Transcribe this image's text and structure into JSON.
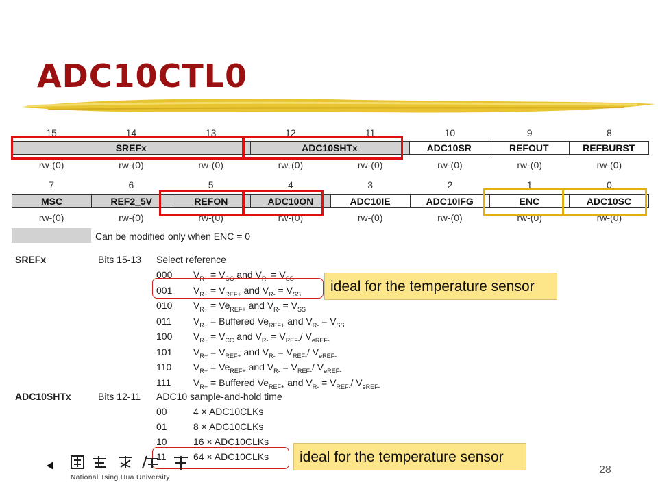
{
  "slide": {
    "title": "ADC10CTL0",
    "page_number": "28"
  },
  "register": {
    "row1_bits": [
      "15",
      "14",
      "13",
      "12",
      "11",
      "10",
      "9",
      "8"
    ],
    "row1_fields": [
      "SREFx",
      "ADC10SHTx",
      "ADC10SR",
      "REFOUT",
      "REFBURST"
    ],
    "row1_access": [
      "rw-(0)",
      "rw-(0)",
      "rw-(0)",
      "rw-(0)",
      "rw-(0)",
      "rw-(0)",
      "rw-(0)",
      "rw-(0)"
    ],
    "row2_bits": [
      "7",
      "6",
      "5",
      "4",
      "3",
      "2",
      "1",
      "0"
    ],
    "row2_fields": [
      "MSC",
      "REF2_5V",
      "REFON",
      "ADC10ON",
      "ADC10IE",
      "ADC10IFG",
      "ENC",
      "ADC10SC"
    ],
    "row2_access": [
      "rw-(0)",
      "rw-(0)",
      "rw-(0)",
      "rw-(0)",
      "rw-(0)",
      "rw-(0)",
      "rw-(0)",
      "rw-(0)"
    ],
    "legend": "Can be modified only when ENC = 0"
  },
  "srefx": {
    "name": "SREFx",
    "bits": "Bits 15-13",
    "desc": "Select reference",
    "options": [
      {
        "code": "000",
        "pre": "V",
        "s1": "R+",
        "mid1": " = V",
        "s2": "CC",
        "mid2": " and V",
        "s3": "R-",
        "mid3": " = V",
        "s4": "SS",
        "end": ""
      },
      {
        "code": "001",
        "pre": "V",
        "s1": "R+",
        "mid1": " = V",
        "s2": "REF+",
        "mid2": " and V",
        "s3": "R-",
        "mid3": " = V",
        "s4": "SS",
        "end": ""
      },
      {
        "code": "010",
        "pre": "V",
        "s1": "R+",
        "mid1": " = Ve",
        "s2": "REF+",
        "mid2": " and V",
        "s3": "R-",
        "mid3": " = V",
        "s4": "SS",
        "end": ""
      },
      {
        "code": "011",
        "pre": "V",
        "s1": "R+",
        "mid1": " = Buffered Ve",
        "s2": "REF+",
        "mid2": " and V",
        "s3": "R-",
        "mid3": " = V",
        "s4": "SS",
        "end": ""
      },
      {
        "code": "100",
        "pre": "V",
        "s1": "R+",
        "mid1": " = V",
        "s2": "CC",
        "mid2": " and V",
        "s3": "R-",
        "mid3": " = V",
        "s4": "REF-",
        "end": "/ V",
        "s5": "eREF-"
      },
      {
        "code": "101",
        "pre": "V",
        "s1": "R+",
        "mid1": " = V",
        "s2": "REF+",
        "mid2": " and V",
        "s3": "R-",
        "mid3": " = V",
        "s4": "REF-",
        "end": "/ V",
        "s5": "eREF-"
      },
      {
        "code": "110",
        "pre": "V",
        "s1": "R+",
        "mid1": " = Ve",
        "s2": "REF+",
        "mid2": " and V",
        "s3": "R-",
        "mid3": " = V",
        "s4": "REF-",
        "end": "/ V",
        "s5": "eREF-"
      },
      {
        "code": "111",
        "pre": "V",
        "s1": "R+",
        "mid1": " = Buffered Ve",
        "s2": "REF+",
        "mid2": " and V",
        "s3": "R-",
        "mid3": " = V",
        "s4": "REF-",
        "end": "/ V",
        "s5": "eREF-"
      }
    ]
  },
  "adc10shtx": {
    "name": "ADC10SHTx",
    "bits": "Bits 12-11",
    "desc": "ADC10 sample-and-hold time",
    "options": [
      {
        "code": "00",
        "text": "4 × ADC10CLKs"
      },
      {
        "code": "01",
        "text": "8 × ADC10CLKs"
      },
      {
        "code": "10",
        "text": "16 × ADC10CLKs"
      },
      {
        "code": "11",
        "text": "64 × ADC10CLKs"
      }
    ]
  },
  "notes": {
    "note1": "ideal for the temperature sensor",
    "note2": "ideal for the temperature sensor"
  },
  "footer": {
    "university": "National Tsing Hua University"
  },
  "colors": {
    "title": "#9b1010",
    "red_highlight": "#e01010",
    "gold_highlight": "#e0b010",
    "note_bg": "#fde58a"
  }
}
